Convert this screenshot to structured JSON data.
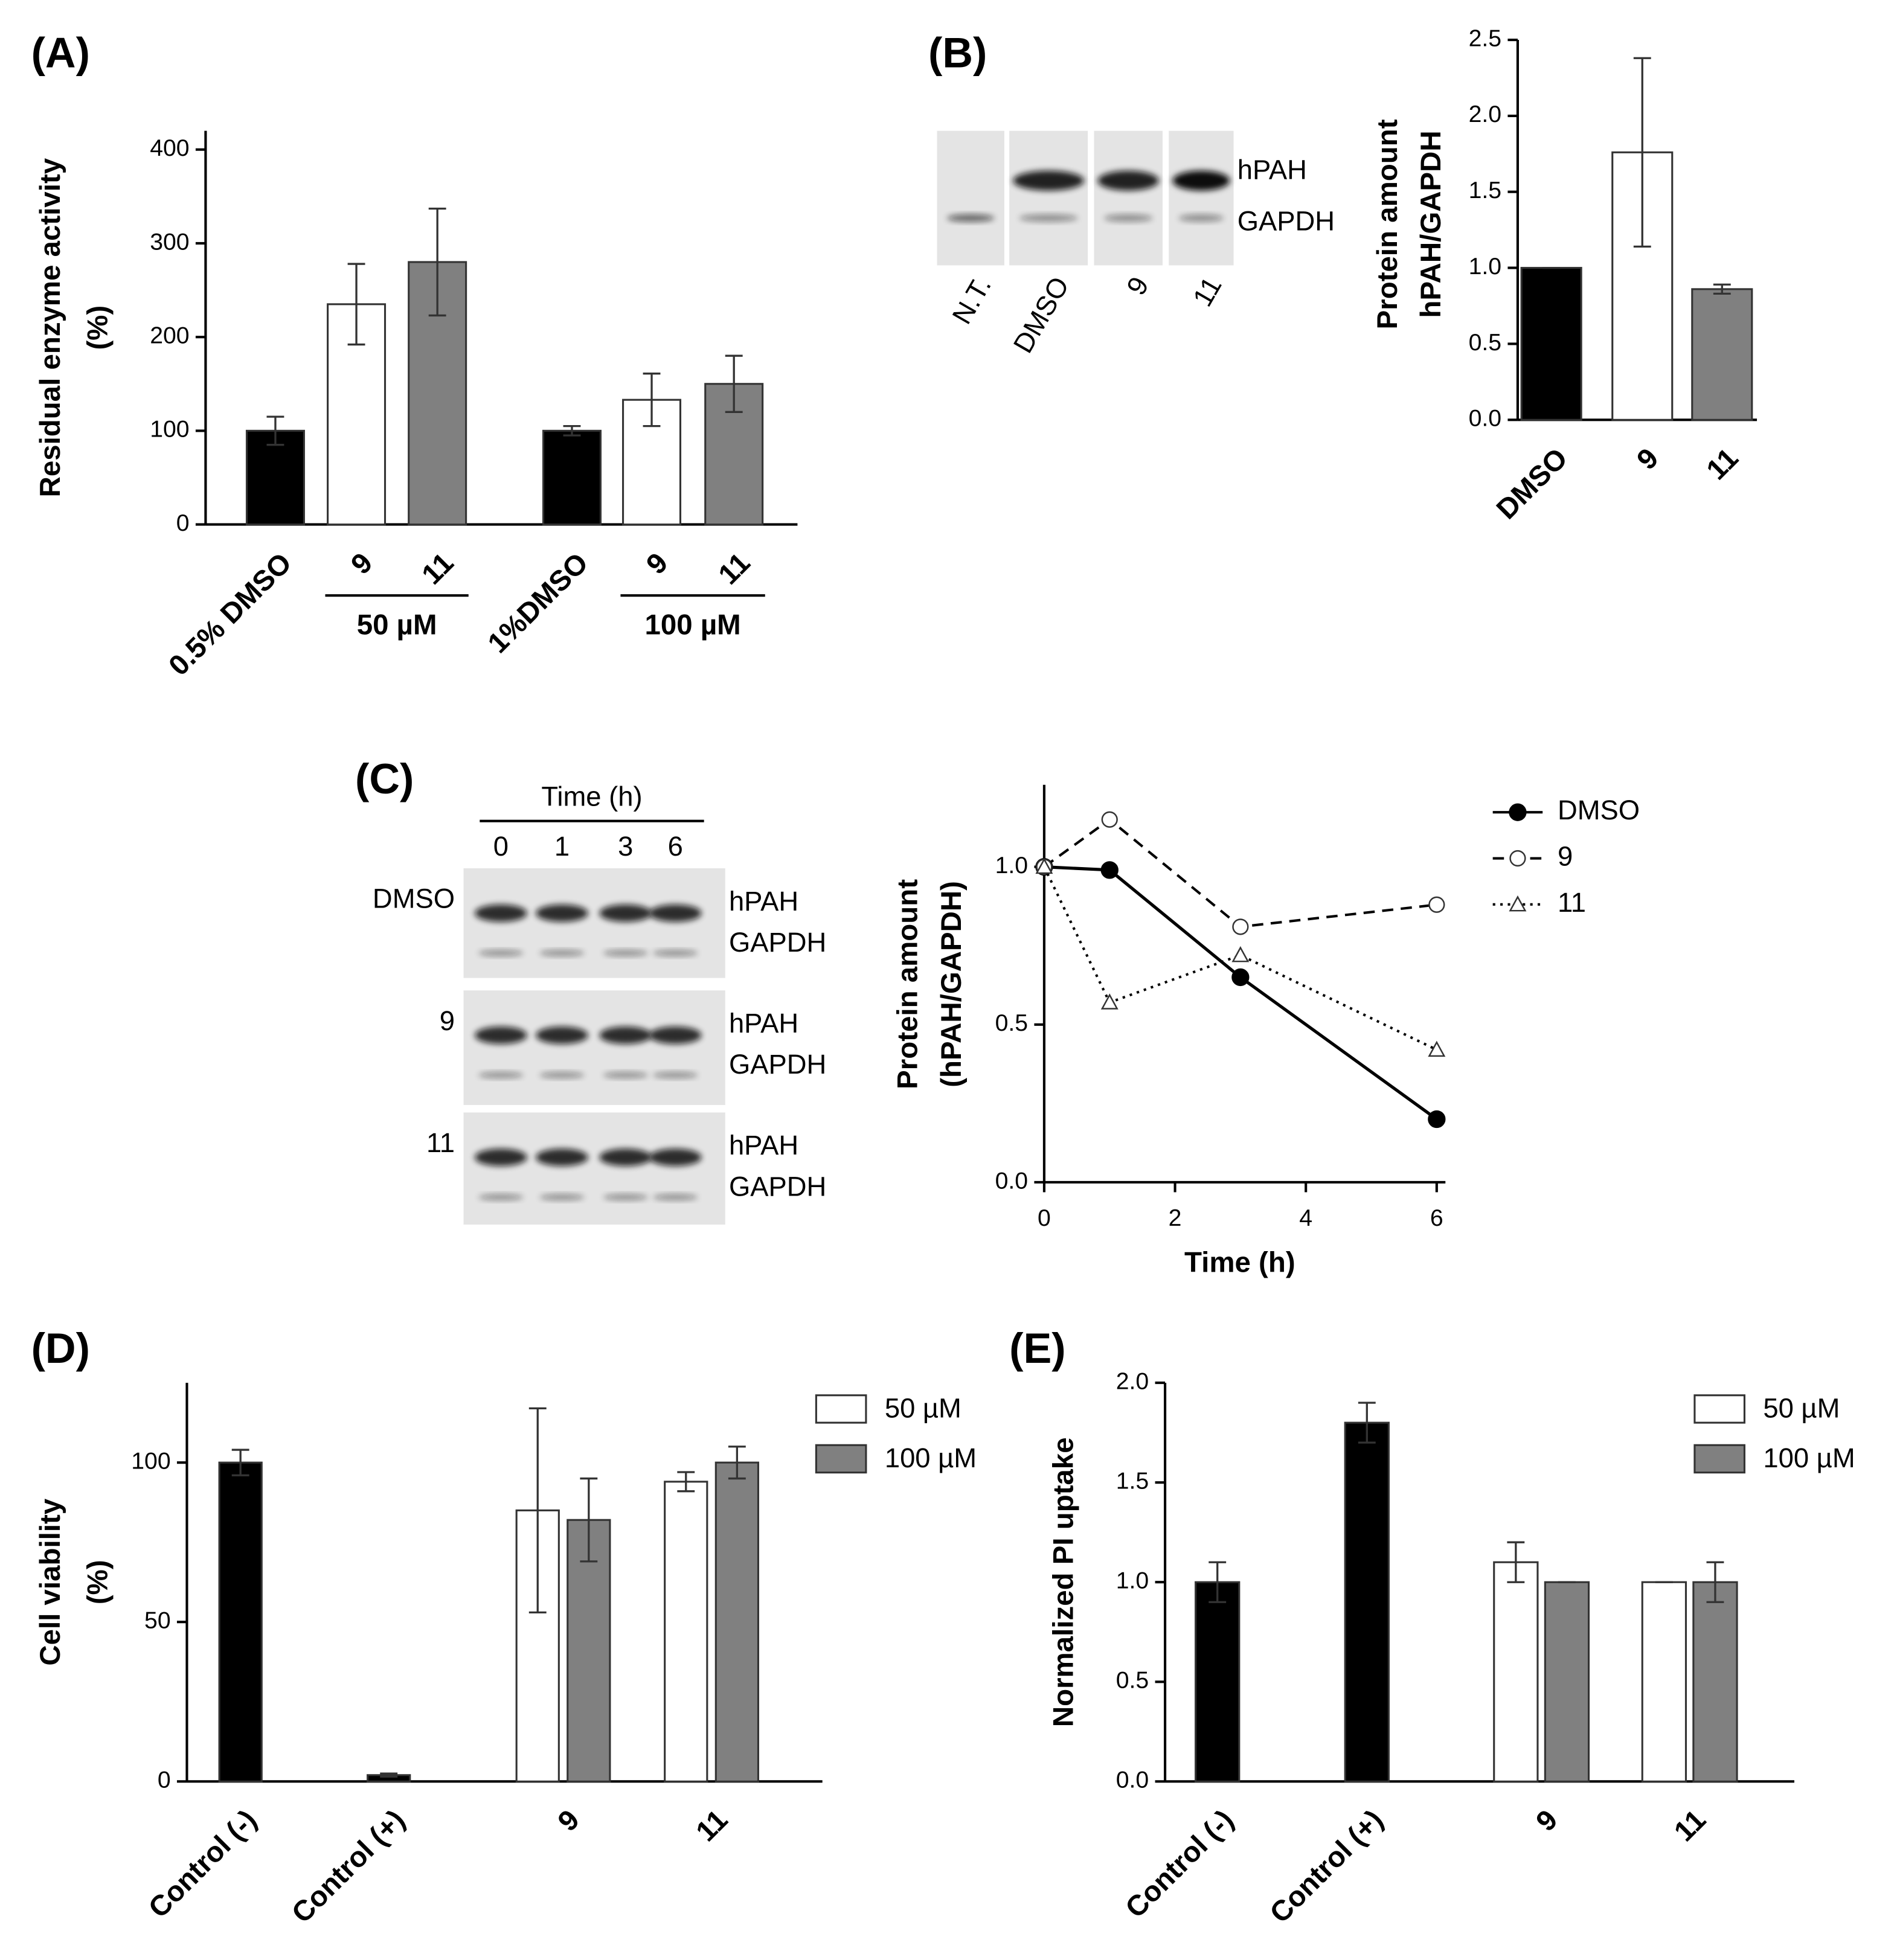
{
  "chart_data": [
    {
      "type": "bar",
      "panel": "(A)",
      "ylabel": [
        "Residual enzyme activity",
        "(%)"
      ],
      "categories": [
        "0.5% DMSO",
        "9",
        "11",
        "1%DMSO",
        "9",
        "11"
      ],
      "groups": [
        "50 µM",
        "100 µM"
      ],
      "values": [
        100,
        235,
        280,
        100,
        133,
        150
      ],
      "errors": [
        15,
        43,
        57,
        5,
        28,
        30
      ],
      "colors": [
        "#000000",
        "#ffffff",
        "#808080",
        "#000000",
        "#ffffff",
        "#808080"
      ],
      "ylim": [
        0,
        420
      ],
      "yticks": [
        0,
        100,
        200,
        300,
        400
      ]
    },
    {
      "type": "bar",
      "panel": "(B)",
      "ylabel": [
        "Protein amount",
        "hPAH/GAPDH"
      ],
      "blot": {
        "lanes": [
          "N.T.",
          "DMSO",
          "9",
          "11"
        ],
        "bands": [
          "hPAH",
          "GAPDH"
        ]
      },
      "categories": [
        "DMSO",
        "9",
        "11"
      ],
      "values": [
        1.0,
        1.76,
        0.86
      ],
      "errors": [
        0,
        0.62,
        0.03
      ],
      "colors": [
        "#000000",
        "#ffffff",
        "#808080"
      ],
      "ylim": [
        0,
        2.5
      ],
      "yticks": [
        {
          "value": 0,
          "label": "0.0"
        },
        0.5,
        {
          "value": 1,
          "label": "1.0"
        },
        1.5,
        {
          "value": 2,
          "label": "2.0"
        },
        2.5
      ]
    },
    {
      "type": "line",
      "panel": "(C)",
      "ylabel": [
        "Protein amount",
        "(hPAH/GAPDH)"
      ],
      "xlabel": "Time (h)",
      "blot": {
        "title": "Time (h)",
        "lanes": [
          "0",
          "1",
          "3",
          "6"
        ],
        "rows": [
          "DMSO",
          "9",
          "11"
        ],
        "bands": [
          "hPAH",
          "GAPDH"
        ]
      },
      "x": [
        0,
        1,
        3,
        6
      ],
      "series": [
        {
          "name": "DMSO",
          "color": "#000000",
          "style": "solid",
          "marker": "filled-circle",
          "values": [
            1.0,
            0.99,
            0.65,
            0.2
          ]
        },
        {
          "name": "9",
          "color": "#000000",
          "style": "dashed",
          "marker": "open-circle",
          "values": [
            1.0,
            1.15,
            0.81,
            0.88
          ]
        },
        {
          "name": "11",
          "color": "#000000",
          "style": "dotted",
          "marker": "open-triangle",
          "values": [
            1.0,
            0.57,
            0.72,
            0.42
          ]
        }
      ],
      "xlim": [
        0,
        6
      ],
      "xticks": [
        0,
        2,
        4,
        6
      ],
      "ylim": [
        0,
        1.26
      ],
      "yticks": [
        {
          "value": 0,
          "label": "0.0"
        },
        0.5,
        {
          "value": 1,
          "label": "1.0"
        }
      ],
      "legend": "right"
    },
    {
      "type": "bar",
      "panel": "(D)",
      "ylabel": [
        "Cell viability",
        "(%)"
      ],
      "categories": [
        "Control (-)",
        "Control (+)",
        "9",
        "11"
      ],
      "series": [
        {
          "color": "#000000",
          "values": [
            100,
            2,
            null,
            null
          ],
          "errors": [
            4,
            0.5,
            null,
            null
          ]
        },
        {
          "name": "50 µM",
          "color": "#ffffff",
          "values": [
            null,
            null,
            85,
            94
          ],
          "errors": [
            null,
            null,
            32,
            3
          ]
        },
        {
          "name": "100 µM",
          "color": "#808080",
          "values": [
            null,
            null,
            82,
            100
          ],
          "errors": [
            null,
            null,
            13,
            5
          ]
        }
      ],
      "ylim": [
        0,
        125
      ],
      "yticks": [
        0,
        50,
        100
      ],
      "legend": "upper right"
    },
    {
      "type": "bar",
      "panel": "(E)",
      "ylabel": [
        "Normalized PI uptake"
      ],
      "categories": [
        "Control (-)",
        "Control (+)",
        "9",
        "11"
      ],
      "series": [
        {
          "color": "#000000",
          "values": [
            1.0,
            1.8,
            null,
            null
          ],
          "errors": [
            0.1,
            0.1,
            null,
            null
          ]
        },
        {
          "name": "50 µM",
          "color": "#ffffff",
          "values": [
            null,
            null,
            1.1,
            1.0
          ],
          "errors": [
            null,
            null,
            0.1,
            0
          ]
        },
        {
          "name": "100 µM",
          "color": "#808080",
          "values": [
            null,
            null,
            1.0,
            1.0
          ],
          "errors": [
            null,
            null,
            0,
            0.1
          ]
        }
      ],
      "ylim": [
        0,
        2.0
      ],
      "yticks": [
        {
          "value": 0,
          "label": "0.0"
        },
        0.5,
        {
          "value": 1,
          "label": "1.0"
        },
        1.5,
        {
          "value": 2,
          "label": "2.0"
        }
      ],
      "legend": "upper right"
    }
  ]
}
